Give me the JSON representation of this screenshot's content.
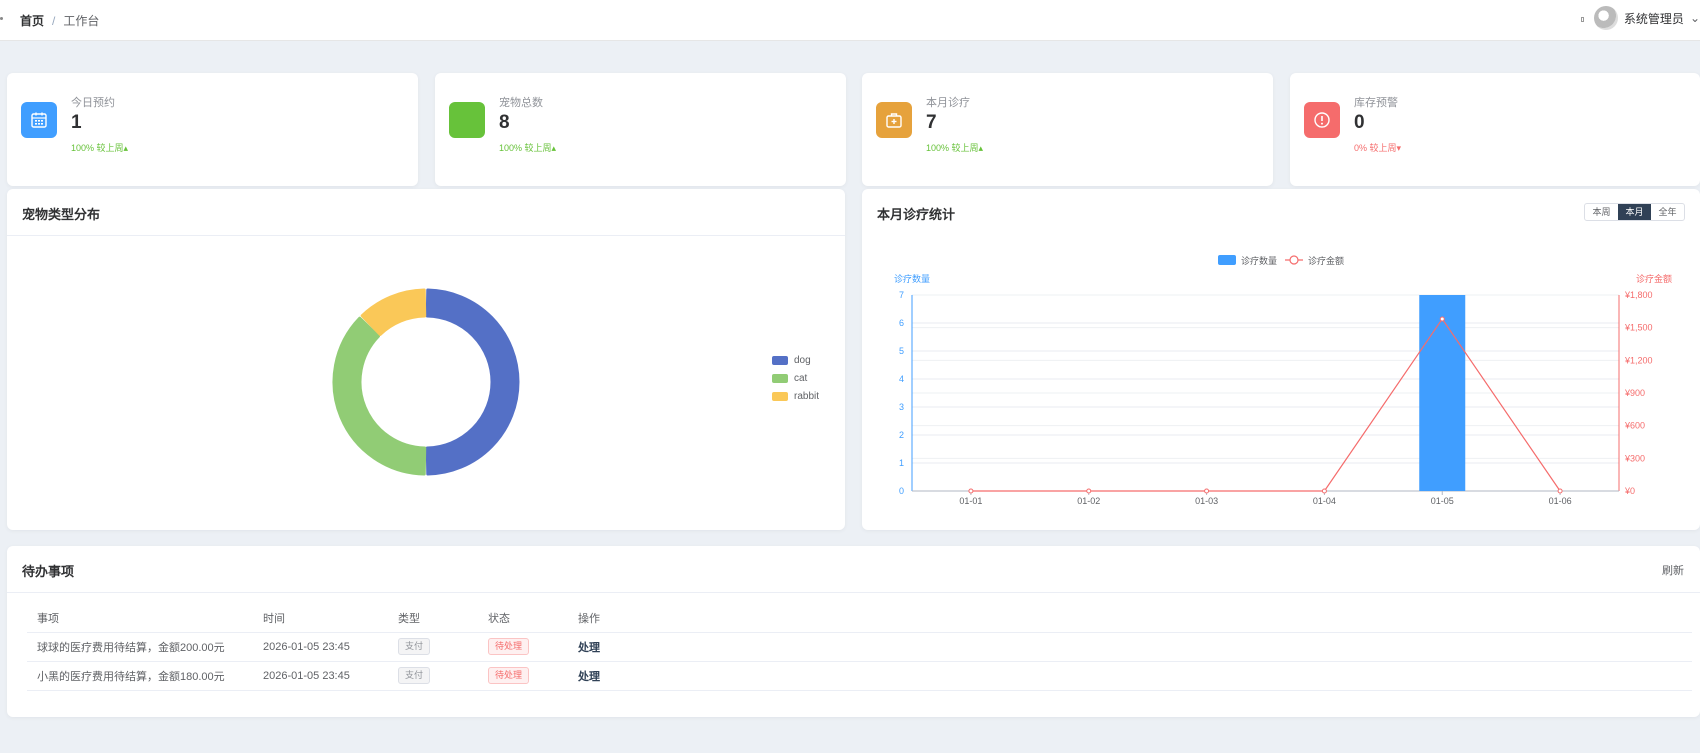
{
  "breadcrumb": {
    "home": "首页",
    "sep": "/",
    "current": "工作台"
  },
  "user": {
    "name": "系统管理员",
    "avatar_icon": "user-avatar",
    "dropdown_icon": "chevron-down-icon"
  },
  "stats": [
    {
      "label": "今日预约",
      "value": "1",
      "trend": "100% 较上周",
      "direction": "up",
      "color": "#409eff",
      "icon": "calendar-icon"
    },
    {
      "label": "宠物总数",
      "value": "8",
      "trend": "100% 较上周",
      "direction": "up",
      "color": "#67c23a",
      "icon": "pet-icon"
    },
    {
      "label": "本月诊疗",
      "value": "7",
      "trend": "100% 较上周",
      "direction": "up",
      "color": "#e6a23c",
      "icon": "medical-kit-icon"
    },
    {
      "label": "库存预警",
      "value": "0",
      "trend": "0% 较上周",
      "direction": "down",
      "color": "#f56c6c",
      "icon": "warning-icon"
    }
  ],
  "pie_card": {
    "title": "宠物类型分布"
  },
  "bar_card": {
    "title": "本月诊疗统计",
    "ranges": [
      "本周",
      "本月",
      "全年"
    ],
    "active_range": "本月"
  },
  "todo": {
    "title": "待办事项",
    "refresh": "刷新",
    "columns": [
      "事项",
      "时间",
      "类型",
      "状态",
      "操作"
    ],
    "rows": [
      {
        "item": "球球的医疗费用待结算，金额200.00元",
        "time": "2026-01-05 23:45",
        "type": "支付",
        "status": "待处理",
        "action": "处理"
      },
      {
        "item": "小黑的医疗费用待结算，金额180.00元",
        "time": "2026-01-05 23:45",
        "type": "支付",
        "status": "待处理",
        "action": "处理"
      }
    ]
  },
  "chart_data": [
    {
      "type": "pie",
      "title": "",
      "donut": true,
      "legend_position": "right",
      "slices": [
        {
          "label": "dog",
          "value": 4,
          "color": "#5470c6"
        },
        {
          "label": "cat",
          "value": 3,
          "color": "#91cc75"
        },
        {
          "label": "rabbit",
          "value": 1,
          "color": "#fac858"
        }
      ]
    },
    {
      "type": "bar",
      "title": "",
      "categories": [
        "01-01",
        "01-02",
        "01-03",
        "01-04",
        "01-05",
        "01-06"
      ],
      "series": [
        {
          "name": "诊疗数量",
          "type": "bar",
          "axis": "left",
          "color": "#409eff",
          "values": [
            0,
            0,
            0,
            0,
            7,
            0
          ]
        },
        {
          "name": "诊疗金额",
          "type": "line",
          "axis": "right",
          "color": "#f56c6c",
          "values": [
            0,
            0,
            0,
            0,
            1580,
            0
          ]
        }
      ],
      "ylabel": "诊疗数量",
      "ylabel_right": "诊疗金额",
      "ylim": [
        0,
        7
      ],
      "yticks": [
        "0",
        "1",
        "2",
        "3",
        "4",
        "5",
        "6",
        "7"
      ],
      "ylim_right": [
        0,
        1800
      ],
      "yticks_right": [
        "¥0",
        "¥300",
        "¥600",
        "¥900",
        "¥1,200",
        "¥1,500",
        "¥1,800"
      ],
      "legend_position": "top",
      "grid": true
    }
  ]
}
